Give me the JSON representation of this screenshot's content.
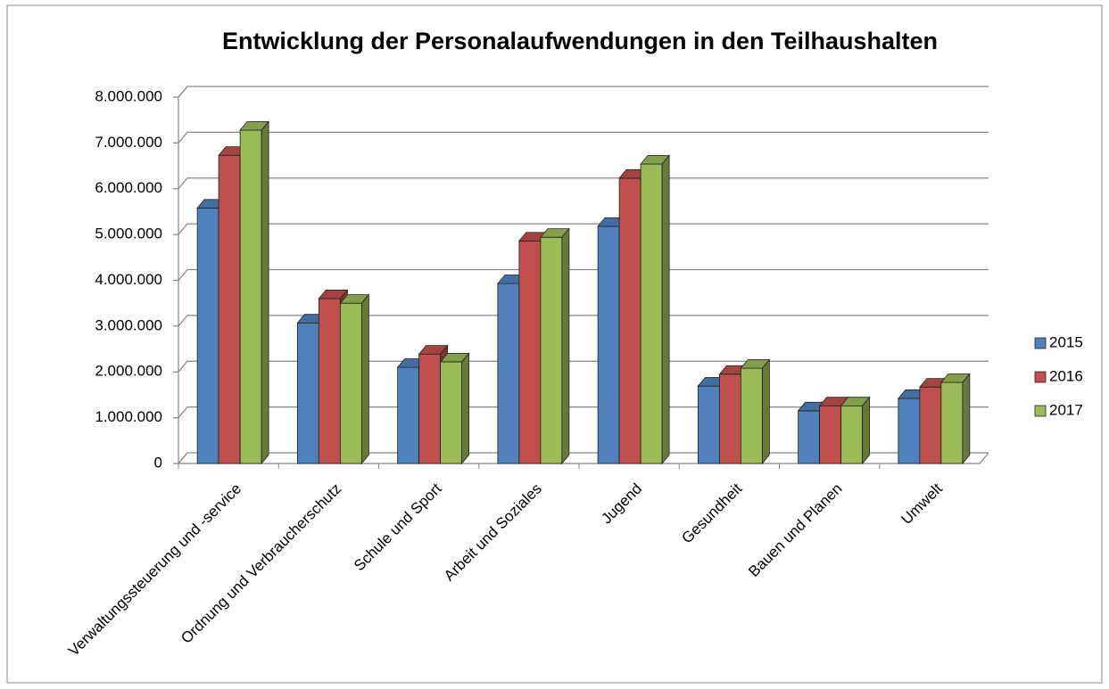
{
  "chart_data": {
    "type": "bar3d",
    "title": "Entwicklung der Personalaufwendungen in den Teilhaushalten",
    "categories": [
      "Verwaltungssteuerung und -service",
      "Ordnung und Verbraucherschutz",
      "Schule und Sport",
      "Arbeit und Soziales",
      "Jugend",
      "Gesundheit",
      "Bauen und Planen",
      "Umwelt"
    ],
    "series": [
      {
        "name": "2015",
        "color": "#4f81bd",
        "values": [
          5580000,
          3070000,
          2100000,
          3930000,
          5180000,
          1690000,
          1150000,
          1420000
        ]
      },
      {
        "name": "2016",
        "color": "#c0504d",
        "values": [
          6730000,
          3600000,
          2390000,
          4860000,
          6230000,
          1950000,
          1260000,
          1670000
        ]
      },
      {
        "name": "2017",
        "color": "#9bbb59",
        "values": [
          7280000,
          3500000,
          2220000,
          4940000,
          6540000,
          2080000,
          1260000,
          1770000
        ]
      }
    ],
    "ylim": [
      0,
      8000000
    ],
    "yticks": [
      0,
      {
        "value": 1000000,
        "label": "1.000.000"
      },
      {
        "value": 2000000,
        "label": "2.000.000"
      },
      {
        "value": 3000000,
        "label": "3.000.000"
      },
      {
        "value": 4000000,
        "label": "4.000.000"
      },
      {
        "value": 5000000,
        "label": "5.000.000"
      },
      {
        "value": 6000000,
        "label": "6.000.000"
      },
      {
        "value": 7000000,
        "label": "7.000.000"
      },
      {
        "value": 8000000,
        "label": "8.000.000"
      }
    ],
    "grid": true,
    "legend": "right"
  }
}
